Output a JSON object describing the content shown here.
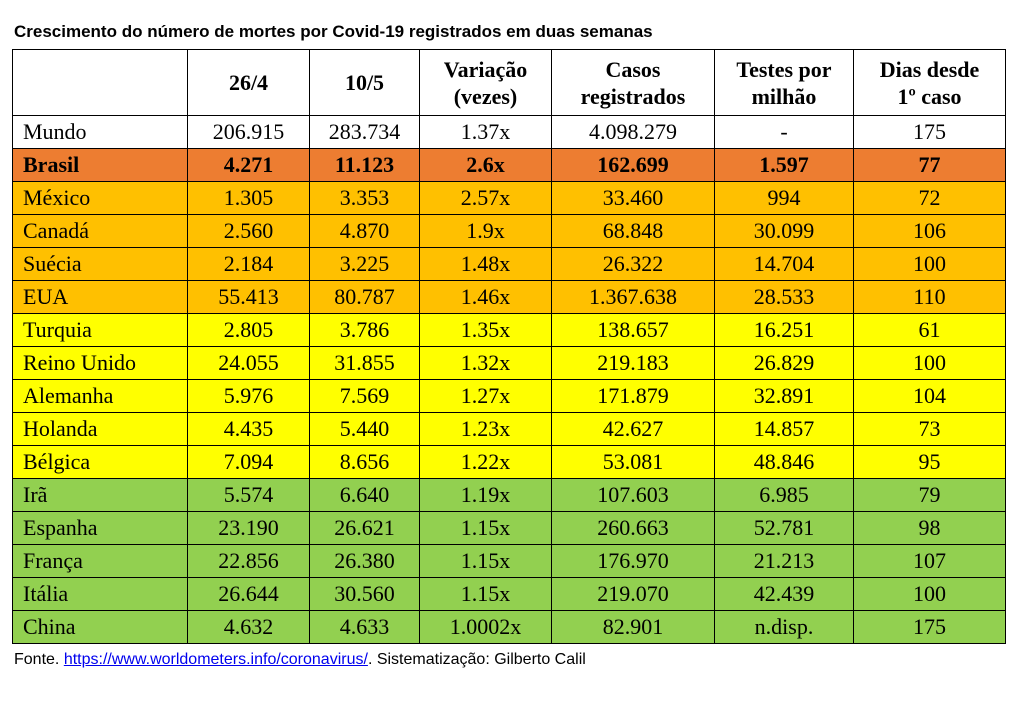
{
  "title": "Crescimento do número de mortes por Covid-19 registrados em duas semanas",
  "colors": {
    "header": "#ffffff",
    "mundo": "#ffffff",
    "brasil": "#ed7d31",
    "orange": "#ffc000",
    "yellow": "#ffff00",
    "green": "#92d050",
    "link": "#0000ee"
  },
  "table": {
    "headers": [
      {
        "l1": "",
        "l2": ""
      },
      {
        "l1": "26/4",
        "l2": ""
      },
      {
        "l1": "10/5",
        "l2": ""
      },
      {
        "l1": "Variação",
        "l2": "(vezes)"
      },
      {
        "l1": "Casos",
        "l2": "registrados"
      },
      {
        "l1": "Testes por",
        "l2": "milhão"
      },
      {
        "l1": "Dias desde",
        "l2": "1º caso"
      }
    ],
    "rows": [
      {
        "country": "Mundo",
        "d26_4": "206.915",
        "d10_5": "283.734",
        "variation": "1.37x",
        "cases": "4.098.279",
        "tests": "-",
        "days": "175",
        "color": "mundo",
        "bold": false
      },
      {
        "country": "Brasil",
        "d26_4": "4.271",
        "d10_5": "11.123",
        "variation": "2.6x",
        "cases": "162.699",
        "tests": "1.597",
        "days": "77",
        "color": "brasil",
        "bold": true
      },
      {
        "country": "México",
        "d26_4": "1.305",
        "d10_5": "3.353",
        "variation": "2.57x",
        "cases": "33.460",
        "tests": "994",
        "days": "72",
        "color": "orange",
        "bold": false
      },
      {
        "country": "Canadá",
        "d26_4": "2.560",
        "d10_5": "4.870",
        "variation": "1.9x",
        "cases": "68.848",
        "tests": "30.099",
        "days": "106",
        "color": "orange",
        "bold": false
      },
      {
        "country": "Suécia",
        "d26_4": "2.184",
        "d10_5": "3.225",
        "variation": "1.48x",
        "cases": "26.322",
        "tests": "14.704",
        "days": "100",
        "color": "orange",
        "bold": false
      },
      {
        "country": "EUA",
        "d26_4": "55.413",
        "d10_5": "80.787",
        "variation": "1.46x",
        "cases": "1.367.638",
        "tests": "28.533",
        "days": "110",
        "color": "orange",
        "bold": false
      },
      {
        "country": "Turquia",
        "d26_4": "2.805",
        "d10_5": "3.786",
        "variation": "1.35x",
        "cases": "138.657",
        "tests": "16.251",
        "days": "61",
        "color": "yellow",
        "bold": false
      },
      {
        "country": "Reino Unido",
        "d26_4": "24.055",
        "d10_5": "31.855",
        "variation": "1.32x",
        "cases": "219.183",
        "tests": "26.829",
        "days": "100",
        "color": "yellow",
        "bold": false
      },
      {
        "country": "Alemanha",
        "d26_4": "5.976",
        "d10_5": "7.569",
        "variation": "1.27x",
        "cases": "171.879",
        "tests": "32.891",
        "days": "104",
        "color": "yellow",
        "bold": false
      },
      {
        "country": "Holanda",
        "d26_4": "4.435",
        "d10_5": "5.440",
        "variation": "1.23x",
        "cases": "42.627",
        "tests": "14.857",
        "days": "73",
        "color": "yellow",
        "bold": false
      },
      {
        "country": "Bélgica",
        "d26_4": "7.094",
        "d10_5": "8.656",
        "variation": "1.22x",
        "cases": "53.081",
        "tests": "48.846",
        "days": "95",
        "color": "yellow",
        "bold": false
      },
      {
        "country": "Irã",
        "d26_4": "5.574",
        "d10_5": "6.640",
        "variation": "1.19x",
        "cases": "107.603",
        "tests": "6.985",
        "days": "79",
        "color": "green",
        "bold": false
      },
      {
        "country": "Espanha",
        "d26_4": "23.190",
        "d10_5": "26.621",
        "variation": "1.15x",
        "cases": "260.663",
        "tests": "52.781",
        "days": "98",
        "color": "green",
        "bold": false
      },
      {
        "country": "França",
        "d26_4": "22.856",
        "d10_5": "26.380",
        "variation": "1.15x",
        "cases": "176.970",
        "tests": "21.213",
        "days": "107",
        "color": "green",
        "bold": false
      },
      {
        "country": "Itália",
        "d26_4": "26.644",
        "d10_5": "30.560",
        "variation": "1.15x",
        "cases": "219.070",
        "tests": "42.439",
        "days": "100",
        "color": "green",
        "bold": false
      },
      {
        "country": "China",
        "d26_4": "4.632",
        "d10_5": "4.633",
        "variation": "1.0002x",
        "cases": "82.901",
        "tests": "n.disp.",
        "days": "175",
        "color": "green",
        "bold": false
      }
    ]
  },
  "footer": {
    "prefix": "Fonte. ",
    "link_text": "https://www.worldometers.info/coronavirus/",
    "suffix": ". Sistematização: Gilberto Calil"
  }
}
